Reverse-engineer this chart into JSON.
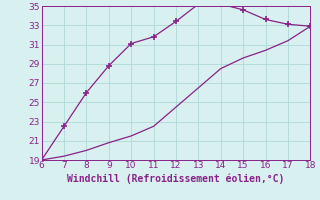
{
  "upper_x": [
    6,
    7,
    8,
    9,
    10,
    11,
    12,
    13,
    14,
    15,
    16,
    17,
    18
  ],
  "upper_y": [
    19,
    22.5,
    26.0,
    28.8,
    31.1,
    31.8,
    33.4,
    35.2,
    35.2,
    34.6,
    33.6,
    33.1,
    32.9
  ],
  "lower_x": [
    6,
    7,
    8,
    9,
    10,
    11,
    12,
    13,
    14,
    15,
    16,
    17,
    18
  ],
  "lower_y": [
    19,
    19.4,
    20.0,
    20.8,
    21.5,
    22.5,
    24.5,
    26.5,
    28.5,
    29.6,
    30.4,
    31.4,
    32.9
  ],
  "line_color": "#882288",
  "marker": "+",
  "markersize": 5,
  "markeredgewidth": 1.2,
  "xlim": [
    6,
    18
  ],
  "ylim": [
    19,
    35
  ],
  "xticks": [
    6,
    7,
    8,
    9,
    10,
    11,
    12,
    13,
    14,
    15,
    16,
    17,
    18
  ],
  "yticks": [
    19,
    21,
    23,
    25,
    27,
    29,
    31,
    33,
    35
  ],
  "xlabel": "Windchill (Refroidissement éolien,°C)",
  "bg_color": "#d8f0f0",
  "grid_color": "#b0d8d8",
  "tick_fontsize": 6.5,
  "xlabel_fontsize": 7.0
}
